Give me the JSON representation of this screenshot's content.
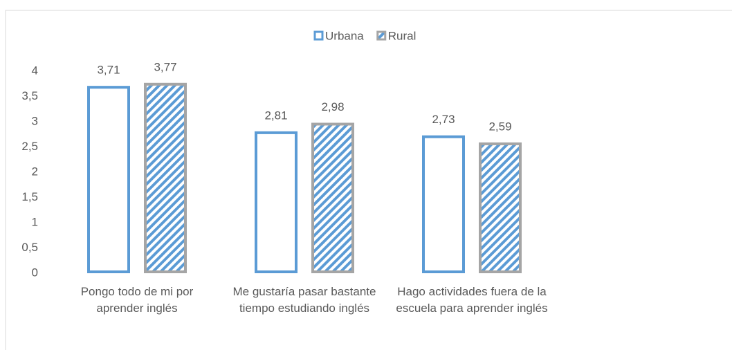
{
  "chart_data": {
    "type": "bar",
    "categories": [
      "Pongo todo de mi por aprender inglés",
      "Me gustaría pasar bastante tiempo estudiando inglés",
      "Hago actividades fuera de la escuela para aprender inglés"
    ],
    "series": [
      {
        "name": "Urbana",
        "color": "#5b9bd5",
        "values": [
          3.71,
          2.81,
          2.73
        ],
        "value_labels": [
          "3,71",
          "2,81",
          "2,73"
        ]
      },
      {
        "name": "Rural",
        "color": "#a5a5a5",
        "values": [
          3.77,
          2.98,
          2.59
        ],
        "value_labels": [
          "3,77",
          "2,98",
          "2,59"
        ]
      }
    ],
    "ylim": [
      0,
      4
    ],
    "yticks": [
      0,
      {
        "value": 0.5,
        "label": "0,5"
      },
      1,
      {
        "value": 1.5,
        "label": "1,5"
      },
      2,
      {
        "value": 2.5,
        "label": "2,5"
      },
      3,
      {
        "value": 3.5,
        "label": "3,5"
      },
      4
    ],
    "grid": false,
    "legend": "top"
  }
}
